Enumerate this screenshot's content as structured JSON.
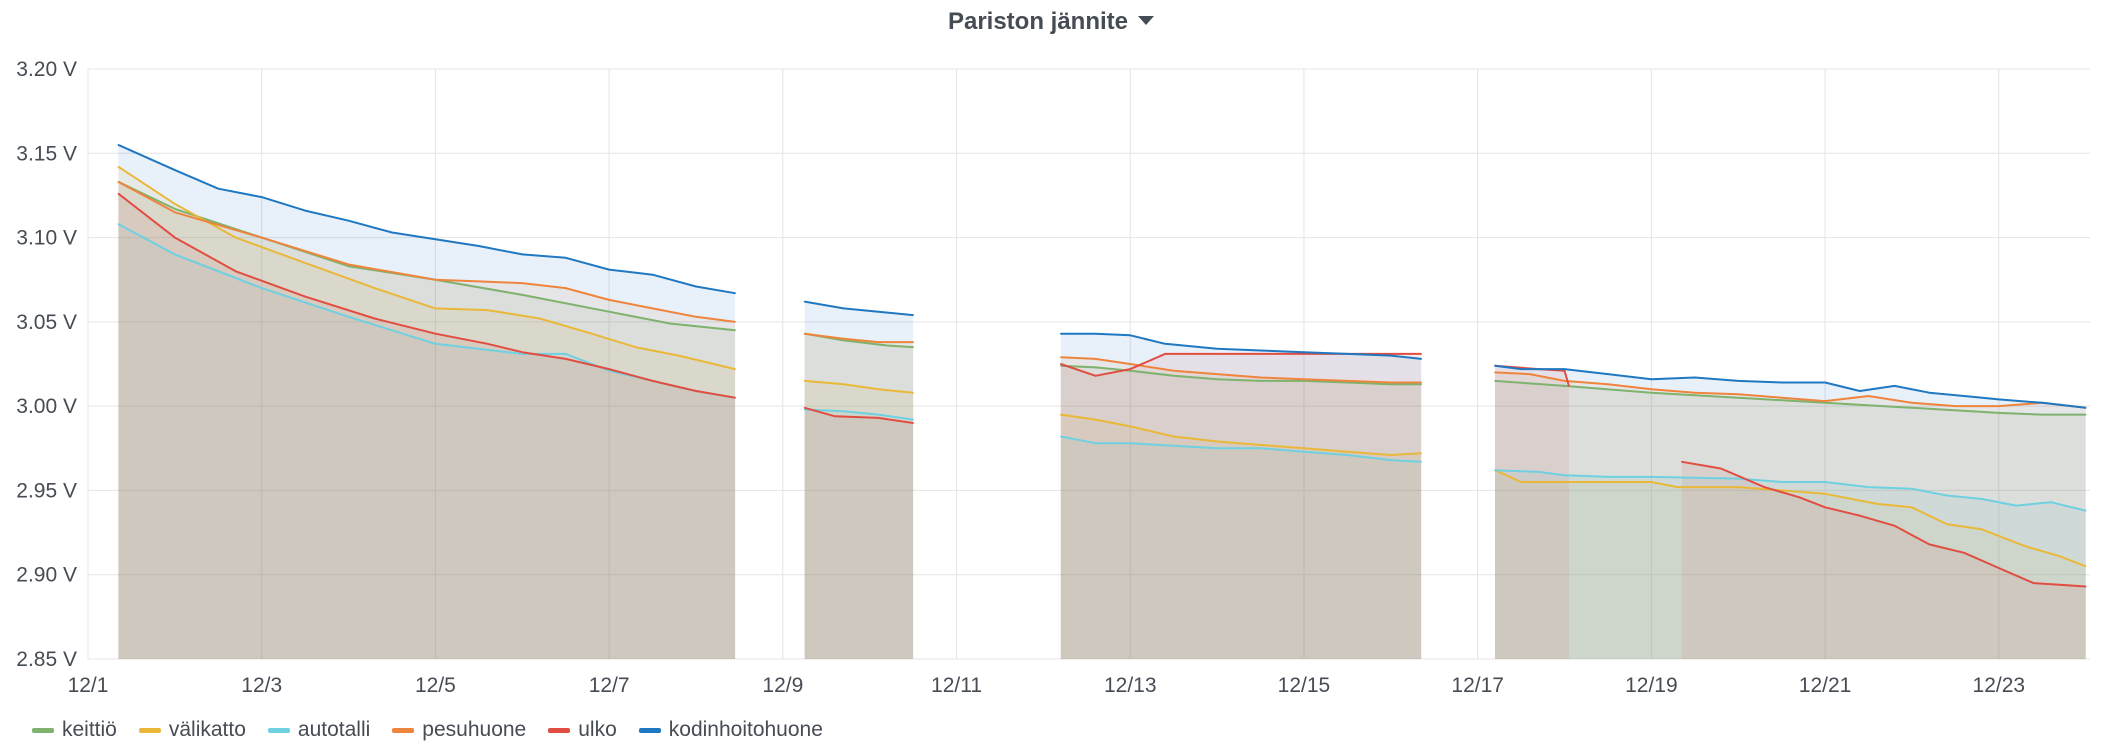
{
  "panel": {
    "title": "Pariston jännite"
  },
  "chart_data": {
    "type": "line",
    "title": "Pariston jännite",
    "ylim": [
      2.85,
      3.2
    ],
    "xlim": [
      1,
      24.05
    ],
    "yticks": [
      {
        "value": 3.2,
        "label": "3.20 V"
      },
      {
        "value": 3.15,
        "label": "3.15 V"
      },
      {
        "value": 3.1,
        "label": "3.10 V"
      },
      {
        "value": 3.05,
        "label": "3.05 V"
      },
      {
        "value": 3.0,
        "label": "3.00 V"
      },
      {
        "value": 2.95,
        "label": "2.95 V"
      },
      {
        "value": 2.9,
        "label": "2.90 V"
      },
      {
        "value": 2.85,
        "label": "2.85 V"
      }
    ],
    "xticks": [
      {
        "value": 1,
        "label": "12/1"
      },
      {
        "value": 3,
        "label": "12/3"
      },
      {
        "value": 5,
        "label": "12/5"
      },
      {
        "value": 7,
        "label": "12/7"
      },
      {
        "value": 9,
        "label": "12/9"
      },
      {
        "value": 11,
        "label": "12/11"
      },
      {
        "value": 13,
        "label": "12/13"
      },
      {
        "value": 15,
        "label": "12/15"
      },
      {
        "value": 17,
        "label": "12/17"
      },
      {
        "value": 19,
        "label": "12/19"
      },
      {
        "value": 21,
        "label": "12/21"
      },
      {
        "value": 23,
        "label": "12/23"
      }
    ],
    "grid": true,
    "fill": true,
    "legend_position": "bottom-left",
    "series": [
      {
        "name": "keittiö",
        "color": "#7eb26d",
        "segments": [
          [
            [
              1.35,
              3.133
            ],
            [
              2,
              3.117
            ],
            [
              3,
              3.1
            ],
            [
              4,
              3.083
            ],
            [
              5,
              3.075
            ],
            [
              6,
              3.066
            ],
            [
              7,
              3.056
            ],
            [
              7.7,
              3.049
            ],
            [
              8.45,
              3.045
            ]
          ],
          [
            [
              9.25,
              3.043
            ],
            [
              9.7,
              3.039
            ],
            [
              10.2,
              3.036
            ],
            [
              10.5,
              3.035
            ]
          ],
          [
            [
              12.2,
              3.024
            ],
            [
              12.6,
              3.023
            ],
            [
              13,
              3.021
            ],
            [
              13.5,
              3.018
            ],
            [
              14,
              3.016
            ],
            [
              14.5,
              3.015
            ],
            [
              15,
              3.015
            ],
            [
              15.5,
              3.014
            ],
            [
              16,
              3.013
            ],
            [
              16.35,
              3.013
            ]
          ],
          [
            [
              17.2,
              3.015
            ],
            [
              18,
              3.012
            ],
            [
              19,
              3.008
            ],
            [
              20,
              3.005
            ],
            [
              21,
              3.002
            ],
            [
              22,
              2.999
            ],
            [
              23,
              2.996
            ],
            [
              23.5,
              2.995
            ],
            [
              24,
              2.995
            ]
          ]
        ]
      },
      {
        "name": "välikatto",
        "color": "#eab839",
        "segments": [
          [
            [
              1.35,
              3.142
            ],
            [
              2,
              3.12
            ],
            [
              2.7,
              3.1
            ],
            [
              3.5,
              3.085
            ],
            [
              4.3,
              3.07
            ],
            [
              5,
              3.058
            ],
            [
              5.6,
              3.057
            ],
            [
              6.2,
              3.052
            ],
            [
              6.8,
              3.043
            ],
            [
              7.3,
              3.035
            ],
            [
              7.8,
              3.03
            ],
            [
              8.45,
              3.022
            ]
          ],
          [
            [
              9.25,
              3.015
            ],
            [
              9.7,
              3.013
            ],
            [
              10.1,
              3.01
            ],
            [
              10.5,
              3.008
            ]
          ],
          [
            [
              12.2,
              2.995
            ],
            [
              12.6,
              2.992
            ],
            [
              13,
              2.988
            ],
            [
              13.5,
              2.982
            ],
            [
              14,
              2.979
            ],
            [
              15,
              2.975
            ],
            [
              15.5,
              2.973
            ],
            [
              16,
              2.971
            ],
            [
              16.35,
              2.972
            ]
          ],
          [
            [
              17.2,
              2.962
            ],
            [
              17.5,
              2.955
            ],
            [
              18,
              2.955
            ],
            [
              19,
              2.955
            ],
            [
              19.3,
              2.952
            ],
            [
              20,
              2.952
            ],
            [
              21,
              2.948
            ],
            [
              21.6,
              2.942
            ],
            [
              22,
              2.94
            ],
            [
              22.4,
              2.93
            ],
            [
              22.8,
              2.927
            ],
            [
              23.3,
              2.917
            ],
            [
              23.7,
              2.911
            ],
            [
              24,
              2.905
            ]
          ]
        ]
      },
      {
        "name": "autotalli",
        "color": "#6ed0e0",
        "segments": [
          [
            [
              1.35,
              3.108
            ],
            [
              2,
              3.09
            ],
            [
              3,
              3.07
            ],
            [
              4,
              3.053
            ],
            [
              5,
              3.037
            ],
            [
              6,
              3.031
            ],
            [
              6.5,
              3.031
            ],
            [
              7,
              3.021
            ],
            [
              7.5,
              3.015
            ],
            [
              8,
              3.009
            ],
            [
              8.45,
              3.005
            ]
          ],
          [
            [
              9.25,
              2.998
            ],
            [
              9.7,
              2.997
            ],
            [
              10.1,
              2.995
            ],
            [
              10.5,
              2.992
            ]
          ],
          [
            [
              12.2,
              2.982
            ],
            [
              12.6,
              2.978
            ],
            [
              13,
              2.978
            ],
            [
              14,
              2.975
            ],
            [
              14.5,
              2.975
            ],
            [
              15,
              2.973
            ],
            [
              15.5,
              2.971
            ],
            [
              16,
              2.968
            ],
            [
              16.35,
              2.967
            ]
          ],
          [
            [
              17.2,
              2.962
            ],
            [
              17.7,
              2.961
            ],
            [
              18,
              2.959
            ],
            [
              18.5,
              2.958
            ],
            [
              19,
              2.958
            ],
            [
              20,
              2.957
            ],
            [
              20.5,
              2.955
            ],
            [
              21,
              2.955
            ],
            [
              21.5,
              2.952
            ],
            [
              22,
              2.951
            ],
            [
              22.4,
              2.947
            ],
            [
              22.8,
              2.945
            ],
            [
              23.2,
              2.941
            ],
            [
              23.6,
              2.943
            ],
            [
              24,
              2.938
            ]
          ]
        ]
      },
      {
        "name": "pesuhuone",
        "color": "#ef843c",
        "segments": [
          [
            [
              1.35,
              3.133
            ],
            [
              2,
              3.115
            ],
            [
              3,
              3.1
            ],
            [
              4,
              3.084
            ],
            [
              5,
              3.075
            ],
            [
              5.5,
              3.074
            ],
            [
              6,
              3.073
            ],
            [
              6.5,
              3.07
            ],
            [
              7,
              3.063
            ],
            [
              7.5,
              3.058
            ],
            [
              8,
              3.053
            ],
            [
              8.45,
              3.05
            ]
          ],
          [
            [
              9.25,
              3.043
            ],
            [
              9.7,
              3.04
            ],
            [
              10.1,
              3.038
            ],
            [
              10.5,
              3.038
            ]
          ],
          [
            [
              12.2,
              3.029
            ],
            [
              12.6,
              3.028
            ],
            [
              13,
              3.025
            ],
            [
              13.5,
              3.021
            ],
            [
              14,
              3.019
            ],
            [
              14.5,
              3.017
            ],
            [
              15,
              3.016
            ],
            [
              15.5,
              3.015
            ],
            [
              16,
              3.014
            ],
            [
              16.35,
              3.014
            ]
          ],
          [
            [
              17.2,
              3.02
            ],
            [
              17.6,
              3.019
            ],
            [
              18,
              3.015
            ],
            [
              18.5,
              3.013
            ],
            [
              19,
              3.01
            ],
            [
              19.5,
              3.008
            ],
            [
              20,
              3.007
            ],
            [
              20.5,
              3.005
            ],
            [
              21,
              3.003
            ],
            [
              21.5,
              3.006
            ],
            [
              22,
              3.002
            ],
            [
              22.5,
              3
            ],
            [
              23,
              3
            ],
            [
              23.5,
              3.002
            ],
            [
              24,
              2.999
            ]
          ]
        ]
      },
      {
        "name": "ulko",
        "color": "#e24d42",
        "segments": [
          [
            [
              1.35,
              3.126
            ],
            [
              2,
              3.1
            ],
            [
              2.7,
              3.08
            ],
            [
              3.5,
              3.065
            ],
            [
              4.3,
              3.052
            ],
            [
              5,
              3.043
            ],
            [
              5.6,
              3.037
            ],
            [
              6,
              3.032
            ],
            [
              6.5,
              3.028
            ],
            [
              7,
              3.022
            ],
            [
              7.5,
              3.015
            ],
            [
              8,
              3.009
            ],
            [
              8.45,
              3.005
            ]
          ],
          [
            [
              9.25,
              2.999
            ],
            [
              9.6,
              2.994
            ],
            [
              10.1,
              2.993
            ],
            [
              10.5,
              2.99
            ]
          ],
          [
            [
              12.2,
              3.025
            ],
            [
              12.6,
              3.018
            ],
            [
              13,
              3.022
            ],
            [
              13.4,
              3.031
            ],
            [
              14,
              3.031
            ],
            [
              14.5,
              3.031
            ],
            [
              15,
              3.031
            ],
            [
              15.5,
              3.031
            ],
            [
              16,
              3.031
            ],
            [
              16.35,
              3.031
            ]
          ],
          [
            [
              17.2,
              3.024
            ],
            [
              17.7,
              3.022
            ],
            [
              18,
              3.021
            ],
            [
              18.05,
              3.012
            ]
          ],
          [
            [
              19.35,
              2.967
            ],
            [
              19.8,
              2.963
            ],
            [
              20.3,
              2.952
            ],
            [
              20.7,
              2.946
            ],
            [
              21,
              2.94
            ],
            [
              21.4,
              2.935
            ],
            [
              21.8,
              2.929
            ],
            [
              22.2,
              2.918
            ],
            [
              22.6,
              2.913
            ],
            [
              23,
              2.904
            ],
            [
              23.4,
              2.895
            ],
            [
              23.7,
              2.894
            ],
            [
              24,
              2.893
            ]
          ]
        ]
      },
      {
        "name": "kodinhoitohuone",
        "color": "#1f78c1",
        "segments": [
          [
            [
              1.35,
              3.155
            ],
            [
              2,
              3.14
            ],
            [
              2.5,
              3.129
            ],
            [
              3,
              3.124
            ],
            [
              3.5,
              3.116
            ],
            [
              4,
              3.11
            ],
            [
              4.5,
              3.103
            ],
            [
              5,
              3.099
            ],
            [
              5.5,
              3.095
            ],
            [
              6,
              3.09
            ],
            [
              6.5,
              3.088
            ],
            [
              7,
              3.081
            ],
            [
              7.5,
              3.078
            ],
            [
              8,
              3.071
            ],
            [
              8.45,
              3.067
            ]
          ],
          [
            [
              9.25,
              3.062
            ],
            [
              9.7,
              3.058
            ],
            [
              10.1,
              3.056
            ],
            [
              10.5,
              3.054
            ]
          ],
          [
            [
              12.2,
              3.043
            ],
            [
              12.6,
              3.043
            ],
            [
              13,
              3.042
            ],
            [
              13.4,
              3.037
            ],
            [
              14,
              3.034
            ],
            [
              14.5,
              3.033
            ],
            [
              15,
              3.032
            ],
            [
              15.5,
              3.031
            ],
            [
              16,
              3.03
            ],
            [
              16.35,
              3.028
            ]
          ],
          [
            [
              17.2,
              3.024
            ],
            [
              17.5,
              3.022
            ],
            [
              18,
              3.022
            ],
            [
              18.5,
              3.019
            ],
            [
              19,
              3.016
            ],
            [
              19.5,
              3.017
            ],
            [
              20,
              3.015
            ],
            [
              20.5,
              3.014
            ],
            [
              21,
              3.014
            ],
            [
              21.4,
              3.009
            ],
            [
              21.8,
              3.012
            ],
            [
              22.2,
              3.008
            ],
            [
              22.6,
              3.006
            ],
            [
              23,
              3.004
            ],
            [
              23.5,
              3.002
            ],
            [
              24,
              2.999
            ]
          ]
        ]
      }
    ]
  }
}
